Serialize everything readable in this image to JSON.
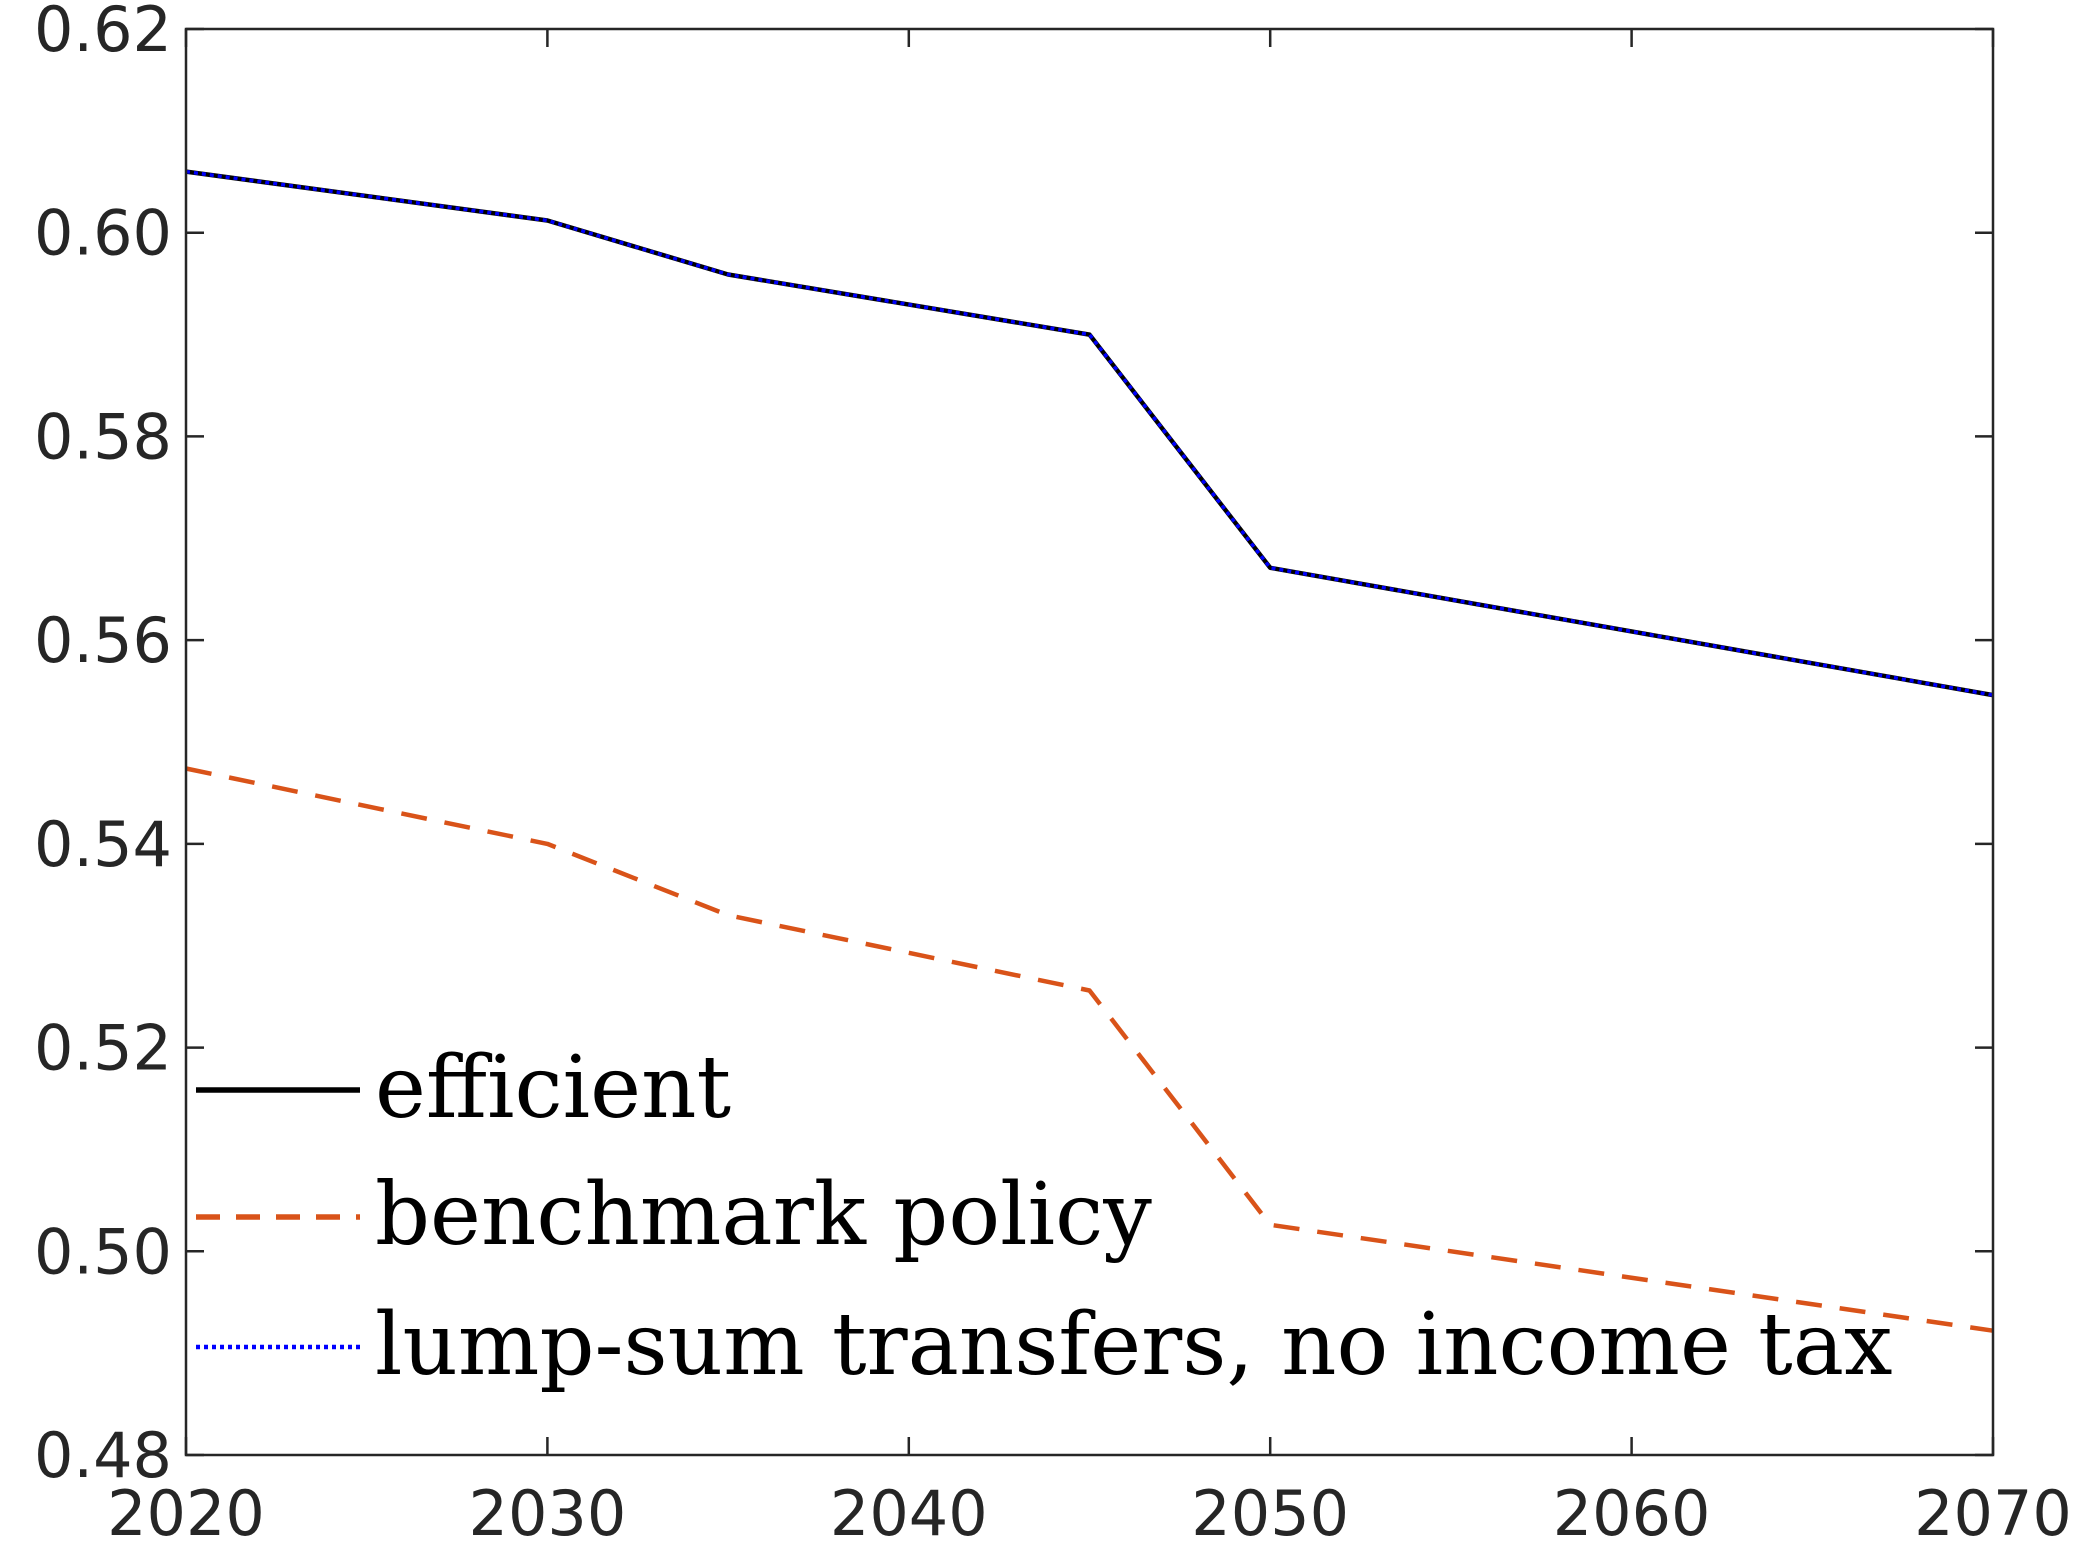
{
  "chart_data": {
    "type": "line",
    "title": "",
    "xlabel": "",
    "ylabel": "",
    "x": [
      2020,
      2030,
      2035,
      2045,
      2050,
      2070
    ],
    "xlim": [
      2020,
      2070
    ],
    "ylim": [
      0.48,
      0.62
    ],
    "xticks": [
      2020,
      2030,
      2040,
      2050,
      2060,
      2070
    ],
    "yticks": [
      0.48,
      0.5,
      0.52,
      0.54,
      0.56,
      0.58,
      0.6,
      0.62
    ],
    "xtick_labels": [
      "2020",
      "2030",
      "2040",
      "2050",
      "2060",
      "2070"
    ],
    "ytick_labels": [
      "0.48",
      "0.50",
      "0.52",
      "0.54",
      "0.56",
      "0.58",
      "0.60",
      "0.62"
    ],
    "grid": false,
    "legend_position": "bottom-left",
    "series": [
      {
        "name": "efficient",
        "values": [
          0.606,
          0.6012,
          0.5959,
          0.59,
          0.5671,
          0.5546
        ],
        "color": "#000000",
        "style": "solid"
      },
      {
        "name": "benchmark policy",
        "values": [
          0.5474,
          0.54,
          0.533,
          0.5256,
          0.5026,
          0.4922
        ],
        "color": "#D95319",
        "style": "dashed"
      },
      {
        "name": "lump-sum transfers, no income tax",
        "values": [
          0.606,
          0.6012,
          0.5959,
          0.59,
          0.5671,
          0.5546
        ],
        "color": "#0000FF",
        "style": "dotted"
      }
    ]
  }
}
